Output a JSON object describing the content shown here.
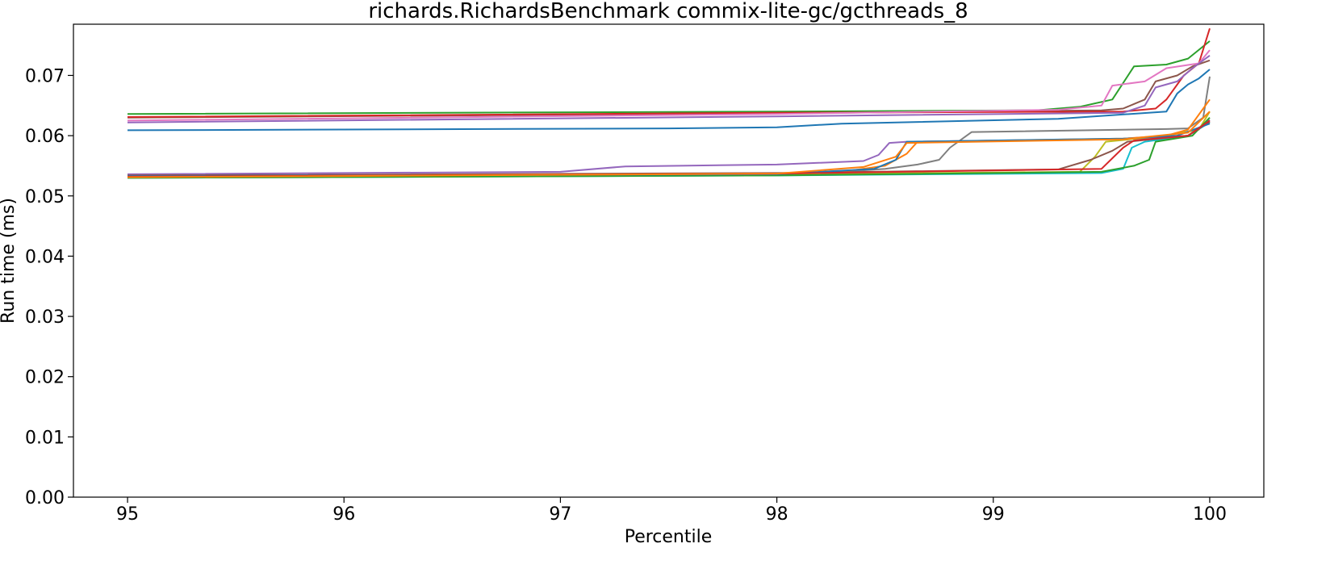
{
  "chart_data": {
    "type": "line",
    "title": "richards.RichardsBenchmark commix-lite-gc/gcthreads_8",
    "xlabel": "Percentile",
    "ylabel": "Run time (ms)",
    "xlim": [
      94.75,
      100.25
    ],
    "ylim": [
      0.0,
      0.0785
    ],
    "xticks": [
      95,
      96,
      97,
      98,
      99,
      100
    ],
    "yticks": [
      0.0,
      0.01,
      0.02,
      0.03,
      0.04,
      0.05,
      0.06,
      0.07
    ],
    "xtick_labels": [
      "95",
      "96",
      "97",
      "98",
      "99",
      "100"
    ],
    "ytick_labels": [
      "0.00",
      "0.01",
      "0.02",
      "0.03",
      "0.04",
      "0.05",
      "0.06",
      "0.07"
    ],
    "grid": false,
    "legend": "none",
    "series": [
      {
        "color": "#2ca02c",
        "points": [
          [
            95,
            0.0636
          ],
          [
            98,
            0.064
          ],
          [
            99.2,
            0.0642
          ],
          [
            99.4,
            0.0648
          ],
          [
            99.55,
            0.066
          ],
          [
            99.65,
            0.0715
          ],
          [
            99.8,
            0.0718
          ],
          [
            99.9,
            0.0728
          ],
          [
            100,
            0.0757
          ]
        ]
      },
      {
        "color": "#8c564b",
        "points": [
          [
            95,
            0.063
          ],
          [
            98,
            0.0637
          ],
          [
            99.5,
            0.0642
          ],
          [
            99.6,
            0.0645
          ],
          [
            99.7,
            0.066
          ],
          [
            99.75,
            0.069
          ],
          [
            99.85,
            0.07
          ],
          [
            99.92,
            0.0715
          ],
          [
            100,
            0.0725
          ]
        ]
      },
      {
        "color": "#d62728",
        "points": [
          [
            95,
            0.0631
          ],
          [
            98,
            0.0638
          ],
          [
            99.6,
            0.064
          ],
          [
            99.75,
            0.0645
          ],
          [
            99.8,
            0.066
          ],
          [
            99.88,
            0.07
          ],
          [
            99.95,
            0.072
          ],
          [
            100,
            0.0778
          ]
        ]
      },
      {
        "color": "#e377c2",
        "points": [
          [
            95,
            0.0625
          ],
          [
            98,
            0.0636
          ],
          [
            99.3,
            0.0643
          ],
          [
            99.5,
            0.065
          ],
          [
            99.55,
            0.0683
          ],
          [
            99.7,
            0.069
          ],
          [
            99.8,
            0.0712
          ],
          [
            99.95,
            0.072
          ],
          [
            100,
            0.0742
          ]
        ]
      },
      {
        "color": "#9467bd",
        "points": [
          [
            95,
            0.0622
          ],
          [
            98,
            0.0632
          ],
          [
            99.6,
            0.0638
          ],
          [
            99.7,
            0.065
          ],
          [
            99.75,
            0.068
          ],
          [
            99.85,
            0.069
          ],
          [
            99.92,
            0.0712
          ],
          [
            100,
            0.0733
          ]
        ]
      },
      {
        "color": "#1f77b4",
        "points": [
          [
            95,
            0.0609
          ],
          [
            97.5,
            0.0612
          ],
          [
            98,
            0.0614
          ],
          [
            98.3,
            0.062
          ],
          [
            99.3,
            0.0628
          ],
          [
            99.8,
            0.064
          ],
          [
            99.85,
            0.067
          ],
          [
            99.9,
            0.0685
          ],
          [
            99.95,
            0.0695
          ],
          [
            100,
            0.071
          ]
        ]
      },
      {
        "color": "#7f7f7f",
        "points": [
          [
            95,
            0.0533
          ],
          [
            98,
            0.0537
          ],
          [
            98.3,
            0.054
          ],
          [
            98.5,
            0.0545
          ],
          [
            98.65,
            0.0552
          ],
          [
            98.75,
            0.056
          ],
          [
            98.8,
            0.058
          ],
          [
            98.9,
            0.0606
          ],
          [
            99.8,
            0.0611
          ],
          [
            99.9,
            0.0612
          ],
          [
            99.97,
            0.063
          ],
          [
            100,
            0.0698
          ]
        ]
      },
      {
        "color": "#9467bd",
        "points": [
          [
            95,
            0.0536
          ],
          [
            97.0,
            0.054
          ],
          [
            97.3,
            0.0549
          ],
          [
            98,
            0.0552
          ],
          [
            98.4,
            0.0558
          ],
          [
            98.47,
            0.0568
          ],
          [
            98.52,
            0.0588
          ],
          [
            98.6,
            0.059
          ],
          [
            99.7,
            0.0595
          ],
          [
            99.9,
            0.06
          ],
          [
            100,
            0.0626
          ]
        ]
      },
      {
        "color": "#ff7f0e",
        "points": [
          [
            95,
            0.0532
          ],
          [
            98,
            0.0535
          ],
          [
            98.3,
            0.054
          ],
          [
            98.5,
            0.055
          ],
          [
            98.6,
            0.057
          ],
          [
            98.65,
            0.059
          ],
          [
            99.6,
            0.0595
          ],
          [
            99.8,
            0.06
          ],
          [
            99.9,
            0.061
          ],
          [
            100,
            0.066
          ]
        ]
      },
      {
        "color": "#bcbd22",
        "points": [
          [
            95,
            0.0531
          ],
          [
            98,
            0.0536
          ],
          [
            99.4,
            0.054
          ],
          [
            99.47,
            0.0565
          ],
          [
            99.52,
            0.059
          ],
          [
            99.8,
            0.06
          ],
          [
            99.95,
            0.061
          ],
          [
            100,
            0.064
          ]
        ]
      },
      {
        "color": "#17becf",
        "points": [
          [
            95,
            0.053
          ],
          [
            98,
            0.0534
          ],
          [
            99.5,
            0.0538
          ],
          [
            99.6,
            0.0545
          ],
          [
            99.64,
            0.058
          ],
          [
            99.7,
            0.059
          ],
          [
            99.9,
            0.06
          ],
          [
            100,
            0.0622
          ]
        ]
      },
      {
        "color": "#2ca02c",
        "points": [
          [
            95,
            0.053
          ],
          [
            98,
            0.0534
          ],
          [
            99.5,
            0.054
          ],
          [
            99.65,
            0.055
          ],
          [
            99.72,
            0.056
          ],
          [
            99.75,
            0.059
          ],
          [
            99.92,
            0.06
          ],
          [
            100,
            0.063
          ]
        ]
      },
      {
        "color": "#8c564b",
        "points": [
          [
            95,
            0.0534
          ],
          [
            98,
            0.0538
          ],
          [
            99.3,
            0.0544
          ],
          [
            99.45,
            0.056
          ],
          [
            99.55,
            0.0575
          ],
          [
            99.62,
            0.059
          ],
          [
            99.9,
            0.06
          ],
          [
            100,
            0.0623
          ]
        ]
      },
      {
        "color": "#1f77b4",
        "points": [
          [
            95,
            0.0533
          ],
          [
            98,
            0.0536
          ],
          [
            98.45,
            0.0545
          ],
          [
            98.55,
            0.056
          ],
          [
            98.6,
            0.059
          ],
          [
            99.6,
            0.0595
          ],
          [
            99.85,
            0.06
          ],
          [
            100,
            0.062
          ]
        ]
      },
      {
        "color": "#d62728",
        "points": [
          [
            95,
            0.0532
          ],
          [
            98,
            0.0537
          ],
          [
            99.5,
            0.0545
          ],
          [
            99.6,
            0.058
          ],
          [
            99.65,
            0.0592
          ],
          [
            99.9,
            0.06
          ],
          [
            100,
            0.0625
          ]
        ]
      },
      {
        "color": "#ff7f0e",
        "points": [
          [
            95,
            0.0531
          ],
          [
            98,
            0.0537
          ],
          [
            98.4,
            0.0548
          ],
          [
            98.55,
            0.0565
          ],
          [
            98.6,
            0.0588
          ],
          [
            99.6,
            0.0594
          ],
          [
            99.9,
            0.0605
          ],
          [
            100,
            0.064
          ]
        ]
      }
    ]
  }
}
